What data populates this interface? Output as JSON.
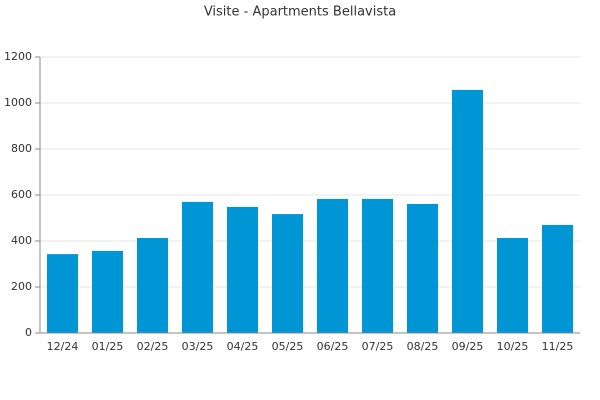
{
  "chart_data": {
    "type": "bar",
    "title": "Visite - Apartments Bellavista",
    "categories": [
      "12/24",
      "01/25",
      "02/25",
      "03/25",
      "04/25",
      "05/25",
      "06/25",
      "07/25",
      "08/25",
      "09/25",
      "10/25",
      "11/25"
    ],
    "values": [
      343,
      357,
      413,
      570,
      548,
      517,
      583,
      583,
      561,
      1057,
      413,
      470
    ],
    "color": "#0096d6",
    "ylim": [
      0,
      1200
    ],
    "yticks": [
      0,
      200,
      400,
      600,
      800,
      1000,
      1200
    ],
    "grid": true
  }
}
